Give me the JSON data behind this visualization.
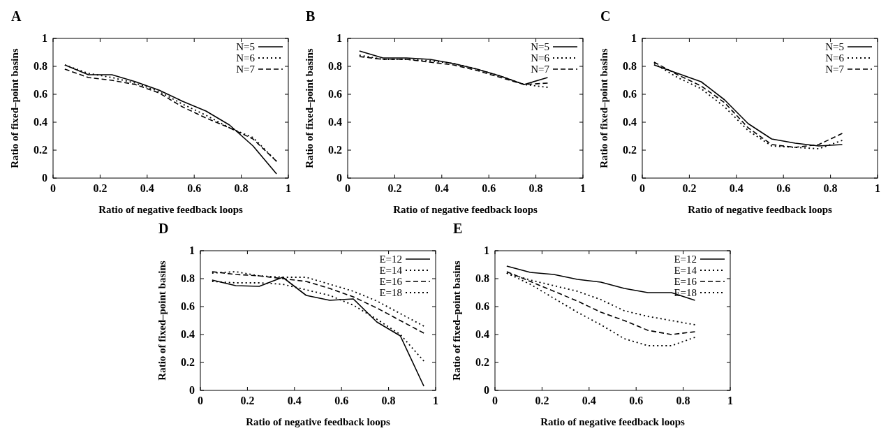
{
  "chart_data": [
    {
      "type": "line",
      "title": "A",
      "xlabel": "Ratio of negative feedback loops",
      "ylabel": "Ratio of fixed–point basins",
      "x": [
        0.05,
        0.15,
        0.25,
        0.35,
        0.45,
        0.55,
        0.65,
        0.75,
        0.85,
        0.95
      ],
      "xlim": [
        0,
        1
      ],
      "ylim": [
        0,
        1
      ],
      "xticks": [
        0,
        0.2,
        0.4,
        0.6,
        0.8,
        1
      ],
      "yticks": [
        0,
        0.2,
        0.4,
        0.6,
        0.8,
        1
      ],
      "grid": false,
      "legend": "top right",
      "series": [
        {
          "name": "N=5",
          "color": "#000000",
          "line_style": "solid",
          "values": [
            0.81,
            0.74,
            0.74,
            0.69,
            0.63,
            0.55,
            0.48,
            0.38,
            0.23,
            0.03
          ]
        },
        {
          "name": "N=6",
          "color": "#000000",
          "line_style": "dotted",
          "values": [
            0.81,
            0.75,
            0.72,
            0.68,
            0.62,
            0.53,
            0.45,
            0.36,
            0.29,
            0.12
          ]
        },
        {
          "name": "N=7",
          "color": "#000000",
          "line_style": "dashed",
          "values": [
            0.78,
            0.72,
            0.7,
            0.67,
            0.61,
            0.51,
            0.43,
            0.36,
            0.28,
            0.12
          ]
        }
      ]
    },
    {
      "type": "line",
      "title": "B",
      "xlabel": "Ratio of negative feedback loops",
      "ylabel": "Ratio of fixed–point basins",
      "x": [
        0.05,
        0.15,
        0.25,
        0.35,
        0.45,
        0.55,
        0.65,
        0.75,
        0.85
      ],
      "xlim": [
        0,
        1
      ],
      "ylim": [
        0,
        1
      ],
      "xticks": [
        0,
        0.2,
        0.4,
        0.6,
        0.8,
        1
      ],
      "yticks": [
        0,
        0.2,
        0.4,
        0.6,
        0.8,
        1
      ],
      "grid": false,
      "legend": "top right",
      "series": [
        {
          "name": "N=5",
          "color": "#000000",
          "line_style": "solid",
          "values": [
            0.91,
            0.86,
            0.86,
            0.85,
            0.82,
            0.78,
            0.73,
            0.67,
            0.72
          ]
        },
        {
          "name": "N=6",
          "color": "#000000",
          "line_style": "dotted",
          "values": [
            0.88,
            0.85,
            0.85,
            0.84,
            0.82,
            0.78,
            0.73,
            0.67,
            0.65
          ]
        },
        {
          "name": "N=7",
          "color": "#000000",
          "line_style": "dashed",
          "values": [
            0.87,
            0.85,
            0.85,
            0.83,
            0.81,
            0.77,
            0.72,
            0.67,
            0.68
          ]
        }
      ]
    },
    {
      "type": "line",
      "title": "C",
      "xlabel": "Ratio of negative feedback loops",
      "ylabel": "Ratio of fixed–point basins",
      "x": [
        0.05,
        0.15,
        0.25,
        0.35,
        0.45,
        0.55,
        0.65,
        0.75,
        0.85
      ],
      "xlim": [
        0,
        1
      ],
      "ylim": [
        0,
        1
      ],
      "xticks": [
        0,
        0.2,
        0.4,
        0.6,
        0.8,
        1
      ],
      "yticks": [
        0,
        0.2,
        0.4,
        0.6,
        0.8,
        1
      ],
      "grid": false,
      "legend": "top right",
      "series": [
        {
          "name": "N=5",
          "color": "#000000",
          "line_style": "solid",
          "values": [
            0.81,
            0.75,
            0.69,
            0.56,
            0.39,
            0.28,
            0.25,
            0.23,
            0.24
          ]
        },
        {
          "name": "N=6",
          "color": "#000000",
          "line_style": "dotted",
          "values": [
            0.82,
            0.72,
            0.64,
            0.51,
            0.34,
            0.23,
            0.22,
            0.21,
            0.27
          ]
        },
        {
          "name": "N=7",
          "color": "#000000",
          "line_style": "dashed",
          "values": [
            0.83,
            0.74,
            0.66,
            0.54,
            0.36,
            0.24,
            0.22,
            0.24,
            0.32
          ]
        }
      ]
    },
    {
      "type": "line",
      "title": "D",
      "xlabel": "Ratio of negative feedback loops",
      "ylabel": "Ratio of fixed–point basins",
      "x": [
        0.05,
        0.15,
        0.25,
        0.35,
        0.45,
        0.55,
        0.65,
        0.75,
        0.85,
        0.95
      ],
      "xlim": [
        0,
        1
      ],
      "ylim": [
        0,
        1
      ],
      "xticks": [
        0,
        0.2,
        0.4,
        0.6,
        0.8,
        1
      ],
      "yticks": [
        0,
        0.2,
        0.4,
        0.6,
        0.8,
        1
      ],
      "grid": false,
      "legend": "top right",
      "series": [
        {
          "name": "E=12",
          "color": "#000000",
          "line_style": "solid",
          "values": [
            0.79,
            0.75,
            0.745,
            0.81,
            0.68,
            0.645,
            0.655,
            0.49,
            0.39,
            0.03
          ]
        },
        {
          "name": "E=14",
          "color": "#000000",
          "line_style": "dotted",
          "values": [
            0.84,
            0.85,
            0.82,
            0.81,
            0.81,
            0.76,
            0.71,
            0.64,
            0.55,
            0.46
          ]
        },
        {
          "name": "E=16",
          "color": "#000000",
          "line_style": "dashed",
          "values": [
            0.85,
            0.83,
            0.82,
            0.8,
            0.78,
            0.73,
            0.67,
            0.59,
            0.5,
            0.41
          ]
        },
        {
          "name": "E=18",
          "color": "#000000",
          "line_style": "dotted",
          "values": [
            0.78,
            0.77,
            0.77,
            0.76,
            0.72,
            0.68,
            0.61,
            0.51,
            0.4,
            0.21
          ]
        }
      ]
    },
    {
      "type": "line",
      "title": "E",
      "xlabel": "Ratio of negative feedback loops",
      "ylabel": "Ratio of fixed–point basins",
      "x": [
        0.05,
        0.15,
        0.25,
        0.35,
        0.45,
        0.55,
        0.65,
        0.75,
        0.85
      ],
      "xlim": [
        0,
        1
      ],
      "ylim": [
        0,
        1
      ],
      "xticks": [
        0,
        0.2,
        0.4,
        0.6,
        0.8,
        1
      ],
      "yticks": [
        0,
        0.2,
        0.4,
        0.6,
        0.8,
        1
      ],
      "grid": false,
      "legend": "top right",
      "series": [
        {
          "name": "E=12",
          "color": "#000000",
          "line_style": "solid",
          "values": [
            0.89,
            0.845,
            0.83,
            0.795,
            0.775,
            0.73,
            0.7,
            0.7,
            0.645
          ]
        },
        {
          "name": "E=14",
          "color": "#000000",
          "line_style": "dotted",
          "values": [
            0.84,
            0.79,
            0.75,
            0.71,
            0.65,
            0.57,
            0.53,
            0.5,
            0.47
          ]
        },
        {
          "name": "E=16",
          "color": "#000000",
          "line_style": "dashed",
          "values": [
            0.85,
            0.78,
            0.71,
            0.64,
            0.56,
            0.5,
            0.43,
            0.4,
            0.42
          ]
        },
        {
          "name": "E=18",
          "color": "#000000",
          "line_style": "dotted",
          "values": [
            0.84,
            0.76,
            0.66,
            0.56,
            0.47,
            0.37,
            0.32,
            0.32,
            0.38
          ]
        }
      ]
    }
  ]
}
